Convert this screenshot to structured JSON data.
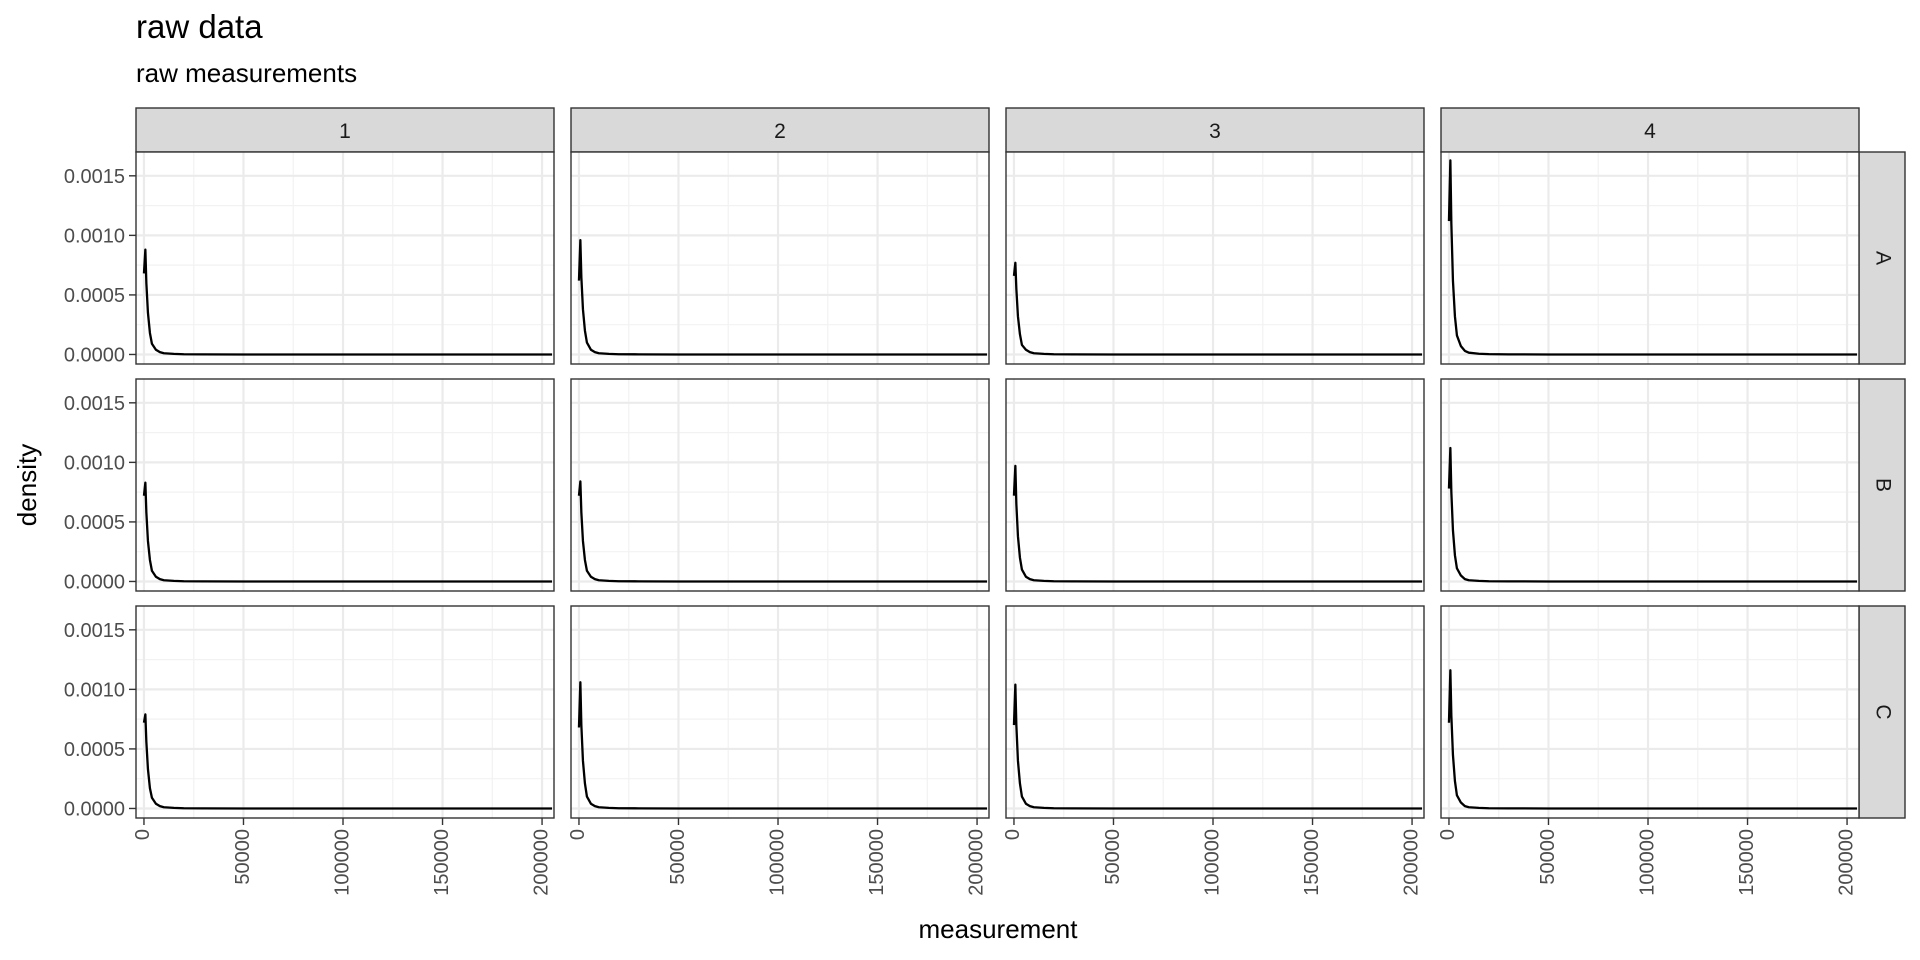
{
  "title": "raw data",
  "subtitle": "raw measurements",
  "chart_data": {
    "type": "line",
    "title": "raw data",
    "subtitle": "raw measurements",
    "xlabel": "measurement",
    "ylabel": "density",
    "xlim": [
      -4000,
      206000
    ],
    "ylim": [
      -8e-05,
      0.0017
    ],
    "xticks": [
      0,
      50000,
      100000,
      150000,
      200000
    ],
    "xtick_labels": [
      "0",
      "50000",
      "100000",
      "150000",
      "200000"
    ],
    "yticks": [
      0,
      0.0005,
      0.001,
      0.0015
    ],
    "ytick_labels": [
      "0.0000",
      "0.0005",
      "0.0010",
      "0.0015"
    ],
    "facet_columns": [
      "1",
      "2",
      "3",
      "4"
    ],
    "facet_rows": [
      "A",
      "B",
      "C"
    ],
    "grid": true,
    "theme": "bw",
    "line_color": "#000000",
    "panels": [
      {
        "row": "A",
        "col": "1",
        "x": [
          0,
          700,
          1200,
          2000,
          3000,
          4000,
          6000,
          8000,
          10000,
          15000,
          20000,
          30000,
          50000,
          100000,
          150000,
          205000
        ],
        "y": [
          0.00068,
          0.00088,
          0.0006,
          0.00035,
          0.00018,
          9e-05,
          4e-05,
          2e-05,
          1e-05,
          5e-06,
          2e-06,
          1e-06,
          0,
          0,
          0,
          0
        ]
      },
      {
        "row": "A",
        "col": "2",
        "x": [
          0,
          700,
          1200,
          2000,
          3000,
          4000,
          6000,
          8000,
          10000,
          15000,
          20000,
          30000,
          50000,
          100000,
          150000,
          205000
        ],
        "y": [
          0.00062,
          0.00096,
          0.00065,
          0.00038,
          0.0002,
          0.0001,
          4e-05,
          2e-05,
          1e-05,
          5e-06,
          2e-06,
          1e-06,
          0,
          0,
          0,
          0
        ]
      },
      {
        "row": "A",
        "col": "3",
        "x": [
          0,
          700,
          1200,
          2000,
          3000,
          4000,
          6000,
          8000,
          10000,
          15000,
          20000,
          30000,
          50000,
          100000,
          150000,
          205000
        ],
        "y": [
          0.00066,
          0.00077,
          0.00055,
          0.00032,
          0.00017,
          8e-05,
          4e-05,
          2e-05,
          1e-05,
          5e-06,
          2e-06,
          1e-06,
          0,
          0,
          0,
          0
        ]
      },
      {
        "row": "A",
        "col": "4",
        "x": [
          0,
          700,
          1200,
          2000,
          3000,
          4000,
          6000,
          8000,
          10000,
          15000,
          20000,
          30000,
          50000,
          100000,
          150000,
          205000
        ],
        "y": [
          0.00112,
          0.00163,
          0.0011,
          0.00062,
          0.00032,
          0.00016,
          7e-05,
          3e-05,
          1.5e-05,
          6e-06,
          3e-06,
          1e-06,
          0,
          0,
          0,
          0
        ]
      },
      {
        "row": "B",
        "col": "1",
        "x": [
          0,
          700,
          1200,
          2000,
          3000,
          4000,
          6000,
          8000,
          10000,
          15000,
          20000,
          30000,
          50000,
          100000,
          150000,
          205000
        ],
        "y": [
          0.00072,
          0.00083,
          0.00058,
          0.00034,
          0.00018,
          9e-05,
          4e-05,
          2e-05,
          1e-05,
          5e-06,
          2e-06,
          1e-06,
          0,
          0,
          0,
          0
        ]
      },
      {
        "row": "B",
        "col": "2",
        "x": [
          0,
          700,
          1200,
          2000,
          3000,
          4000,
          6000,
          8000,
          10000,
          15000,
          20000,
          30000,
          50000,
          100000,
          150000,
          205000
        ],
        "y": [
          0.00072,
          0.00084,
          0.00058,
          0.00034,
          0.00018,
          9e-05,
          4e-05,
          2e-05,
          1e-05,
          5e-06,
          2e-06,
          1e-06,
          0,
          0,
          0,
          0
        ]
      },
      {
        "row": "B",
        "col": "3",
        "x": [
          0,
          700,
          1200,
          2000,
          3000,
          4000,
          6000,
          8000,
          10000,
          15000,
          20000,
          30000,
          50000,
          100000,
          150000,
          205000
        ],
        "y": [
          0.00072,
          0.00097,
          0.00065,
          0.00038,
          0.0002,
          0.0001,
          4e-05,
          2e-05,
          1e-05,
          5e-06,
          2e-06,
          1e-06,
          0,
          0,
          0,
          0
        ]
      },
      {
        "row": "B",
        "col": "4",
        "x": [
          0,
          700,
          1200,
          2000,
          3000,
          4000,
          6000,
          8000,
          10000,
          15000,
          20000,
          30000,
          50000,
          100000,
          150000,
          205000
        ],
        "y": [
          0.00078,
          0.00112,
          0.00075,
          0.00043,
          0.00022,
          0.00011,
          5e-05,
          2e-05,
          1e-05,
          5e-06,
          2e-06,
          1e-06,
          0,
          0,
          0,
          0
        ]
      },
      {
        "row": "C",
        "col": "1",
        "x": [
          0,
          700,
          1200,
          2000,
          3000,
          4000,
          6000,
          8000,
          10000,
          15000,
          20000,
          30000,
          50000,
          100000,
          150000,
          205000
        ],
        "y": [
          0.00072,
          0.00079,
          0.00056,
          0.00033,
          0.00017,
          9e-05,
          4e-05,
          2e-05,
          1e-05,
          5e-06,
          2e-06,
          1e-06,
          0,
          0,
          0,
          0
        ]
      },
      {
        "row": "C",
        "col": "2",
        "x": [
          0,
          700,
          1200,
          2000,
          3000,
          4000,
          6000,
          8000,
          10000,
          15000,
          20000,
          30000,
          50000,
          100000,
          150000,
          205000
        ],
        "y": [
          0.00068,
          0.00106,
          0.0007,
          0.0004,
          0.00021,
          0.0001,
          4e-05,
          2e-05,
          1e-05,
          5e-06,
          2e-06,
          1e-06,
          0,
          0,
          0,
          0
        ]
      },
      {
        "row": "C",
        "col": "3",
        "x": [
          0,
          700,
          1200,
          2000,
          3000,
          4000,
          6000,
          8000,
          10000,
          15000,
          20000,
          30000,
          50000,
          100000,
          150000,
          205000
        ],
        "y": [
          0.0007,
          0.00104,
          0.0007,
          0.0004,
          0.00021,
          0.0001,
          4e-05,
          2e-05,
          1e-05,
          5e-06,
          2e-06,
          1e-06,
          0,
          0,
          0,
          0
        ]
      },
      {
        "row": "C",
        "col": "4",
        "x": [
          0,
          700,
          1200,
          2000,
          3000,
          4000,
          6000,
          8000,
          10000,
          15000,
          20000,
          30000,
          50000,
          100000,
          150000,
          205000
        ],
        "y": [
          0.00072,
          0.00116,
          0.00078,
          0.00045,
          0.00023,
          0.00011,
          5e-05,
          2e-05,
          1e-05,
          5e-06,
          2e-06,
          1e-06,
          0,
          0,
          0,
          0
        ]
      }
    ]
  }
}
